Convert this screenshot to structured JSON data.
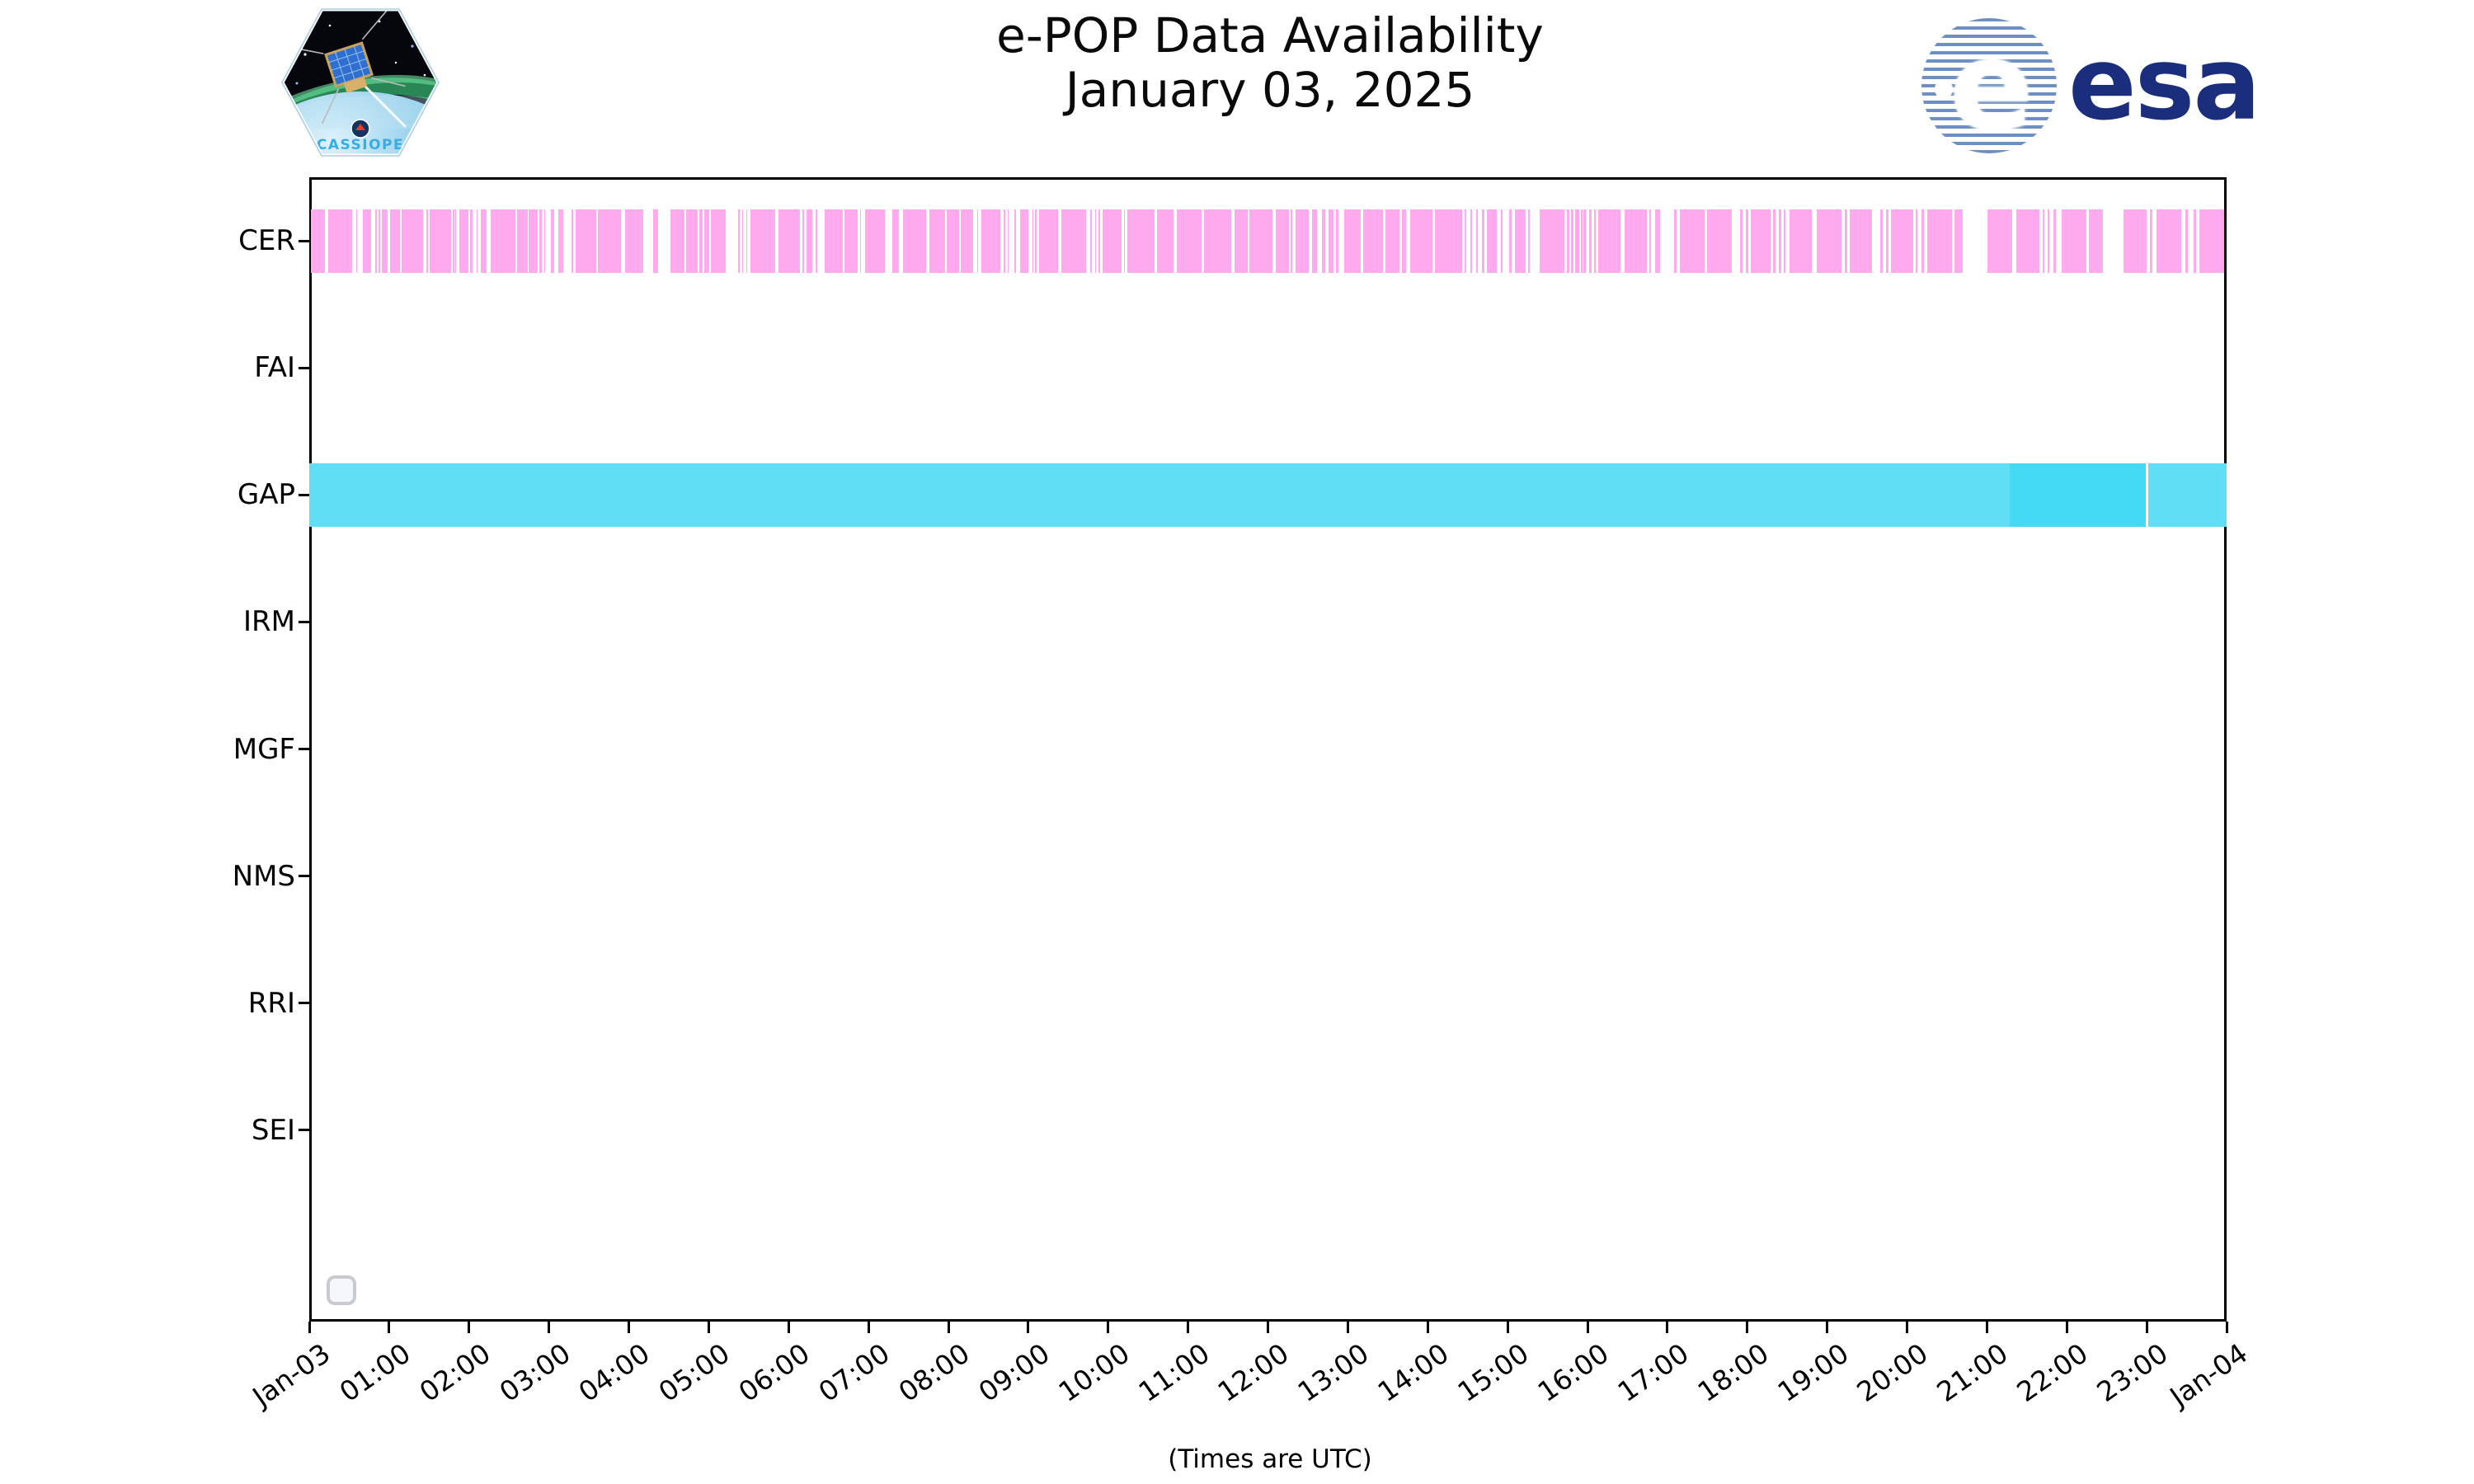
{
  "header": {
    "title_line1": "e-POP Data Availability",
    "title_line2": "January 03, 2025",
    "cassiope_logo_text": "CASSIOPE",
    "esa_globe_letter": "e",
    "esa_wordmark": "esa"
  },
  "footer": {
    "x_axis_title": "(Times are UTC)"
  },
  "colors": {
    "cer_pink": "#ffaaee",
    "gap_cyan": "#5fdef6",
    "gap_cyan_overlap": "#44d9f5",
    "esa_navy": "#1b2d7d",
    "esa_stripe_blue": "#6d8fc3",
    "cassiope_text_blue": "#35aee5",
    "axis_black": "#000000"
  },
  "chart_data": {
    "type": "timeline",
    "title": "e-POP Data Availability\nJanuary 03, 2025",
    "xlabel": "(Times are UTC)",
    "x_range_minutes": [
      0,
      1440
    ],
    "x_tick_interval_minutes": 60,
    "x_tick_labels": [
      "Jan-03",
      "01:00",
      "02:00",
      "03:00",
      "04:00",
      "05:00",
      "06:00",
      "07:00",
      "08:00",
      "09:00",
      "10:00",
      "11:00",
      "12:00",
      "13:00",
      "14:00",
      "15:00",
      "16:00",
      "17:00",
      "18:00",
      "19:00",
      "20:00",
      "21:00",
      "22:00",
      "23:00",
      "Jan-04"
    ],
    "y_categories": [
      "CER",
      "FAI",
      "GAP",
      "IRM",
      "MGF",
      "NMS",
      "RRI",
      "SEI"
    ],
    "grid": false,
    "legend": {
      "visible": true,
      "entries": []
    },
    "rows": [
      {
        "label": "CER",
        "color": "#ffaaee",
        "segments_minutes": [
          [
            1,
            12
          ],
          [
            14,
            32
          ],
          [
            35,
            36
          ],
          [
            40,
            46.5
          ],
          [
            49.5,
            50.5
          ],
          [
            52,
            53.5
          ],
          [
            54.5,
            59
          ],
          [
            61,
            68
          ],
          [
            69.5,
            85.5
          ],
          [
            88,
            89
          ],
          [
            90.5,
            106.5
          ],
          [
            108,
            108.7
          ],
          [
            109.5,
            110.2
          ],
          [
            113,
            119.5
          ],
          [
            121,
            122.5
          ],
          [
            125.5,
            126.5
          ],
          [
            129,
            133
          ],
          [
            136,
            155
          ],
          [
            156,
            164
          ],
          [
            165,
            171.5
          ],
          [
            173,
            174.5
          ],
          [
            176.5,
            177.3
          ],
          [
            181.5,
            184
          ],
          [
            187,
            191
          ],
          [
            197,
            198
          ],
          [
            200,
            215.5
          ],
          [
            217,
            234
          ],
          [
            237,
            251
          ],
          [
            258,
            262
          ],
          [
            271,
            282
          ],
          [
            283,
            292
          ],
          [
            293,
            295.5
          ],
          [
            296.5,
            300.5
          ],
          [
            301.5,
            313
          ],
          [
            322,
            323
          ],
          [
            325,
            326
          ],
          [
            328,
            329
          ],
          [
            331.5,
            350
          ],
          [
            352.5,
            368.5
          ],
          [
            370.5,
            371.5
          ],
          [
            373.5,
            378
          ],
          [
            380.5,
            381.5
          ],
          [
            387,
            400.5
          ],
          [
            402,
            412
          ],
          [
            413.5,
            414.5
          ],
          [
            417.5,
            432.5
          ],
          [
            438,
            443
          ],
          [
            446,
            463.5
          ],
          [
            465.5,
            477.5
          ],
          [
            479,
            488
          ],
          [
            489.5,
            498.5
          ],
          [
            501.5,
            502.5
          ],
          [
            505,
            519
          ],
          [
            521.5,
            522.5
          ],
          [
            524.5,
            525.5
          ],
          [
            529.5,
            530.5
          ],
          [
            534,
            540
          ],
          [
            543,
            544
          ],
          [
            545,
            546
          ],
          [
            548,
            562.5
          ],
          [
            565,
            583.5
          ],
          [
            586.5,
            587.5
          ],
          [
            590,
            591
          ],
          [
            593,
            594
          ],
          [
            596,
            610
          ],
          [
            612,
            612.7
          ],
          [
            614.5,
            635
          ],
          [
            636.5,
            649
          ],
          [
            651.5,
            670
          ],
          [
            672,
            692.5
          ],
          [
            695,
            705
          ],
          [
            706,
            723.5
          ],
          [
            726,
            736
          ],
          [
            737,
            738.5
          ],
          [
            740.5,
            750.5
          ],
          [
            753,
            757
          ],
          [
            760.5,
            763
          ],
          [
            765.5,
            769
          ],
          [
            771,
            773
          ],
          [
            777.5,
            789.5
          ],
          [
            791.5,
            806.5
          ],
          [
            808.5,
            819
          ],
          [
            820.5,
            824
          ],
          [
            827,
            843.5
          ],
          [
            845.5,
            866
          ],
          [
            868,
            869
          ],
          [
            872,
            873
          ],
          [
            876.5,
            877.5
          ],
          [
            880.5,
            882.5
          ],
          [
            884.5,
            892
          ],
          [
            895,
            896
          ],
          [
            901,
            903
          ],
          [
            905.5,
            913.5
          ],
          [
            915.5,
            916.5
          ],
          [
            924,
            942.5
          ],
          [
            944.5,
            946.5
          ],
          [
            947.5,
            949.5
          ],
          [
            950.5,
            954
          ],
          [
            955,
            956
          ],
          [
            957,
            959
          ],
          [
            961,
            963
          ],
          [
            965,
            966
          ],
          [
            968,
            985
          ],
          [
            988,
            1004.5
          ],
          [
            1006.5,
            1007.5
          ],
          [
            1011,
            1014.5
          ],
          [
            1025,
            1027
          ],
          [
            1029.5,
            1048
          ],
          [
            1050,
            1068.5
          ],
          [
            1074.5,
            1076.5
          ],
          [
            1079,
            1081
          ],
          [
            1082.5,
            1097.5
          ],
          [
            1099.5,
            1101
          ],
          [
            1103.5,
            1105.5
          ],
          [
            1107.5,
            1108.5
          ],
          [
            1111.5,
            1128.5
          ],
          [
            1132,
            1151
          ],
          [
            1153,
            1155
          ],
          [
            1157,
            1173.5
          ],
          [
            1180,
            1181.5
          ],
          [
            1184,
            1186
          ],
          [
            1188,
            1204.5
          ],
          [
            1206.5,
            1207.5
          ],
          [
            1211,
            1212.5
          ],
          [
            1215,
            1233.5
          ],
          [
            1235.5,
            1242
          ],
          [
            1260.5,
            1279
          ],
          [
            1282,
            1299.5
          ],
          [
            1302,
            1303
          ],
          [
            1305.5,
            1307
          ],
          [
            1310,
            1312
          ],
          [
            1316,
            1335
          ],
          [
            1336.5,
            1347
          ],
          [
            1362.5,
            1380
          ],
          [
            1382.5,
            1384.5
          ],
          [
            1387.5,
            1406
          ],
          [
            1409,
            1411
          ],
          [
            1415.5,
            1417
          ],
          [
            1419.5,
            1438
          ]
        ]
      },
      {
        "label": "FAI",
        "color": "#ffaaee",
        "segments_minutes": []
      },
      {
        "label": "GAP",
        "color": "#5fdef6",
        "segments_minutes": [
          [
            0,
            1379.5
          ],
          [
            1381,
            1440
          ]
        ],
        "overlap_color": "#44d9f5",
        "overlap_segments_minutes": [
          [
            1277,
            1379.5
          ]
        ]
      },
      {
        "label": "IRM",
        "color": "#5fdef6",
        "segments_minutes": []
      },
      {
        "label": "MGF",
        "color": "#5fdef6",
        "segments_minutes": []
      },
      {
        "label": "NMS",
        "color": "#5fdef6",
        "segments_minutes": []
      },
      {
        "label": "RRI",
        "color": "#5fdef6",
        "segments_minutes": []
      },
      {
        "label": "SEI",
        "color": "#5fdef6",
        "segments_minutes": []
      }
    ]
  }
}
